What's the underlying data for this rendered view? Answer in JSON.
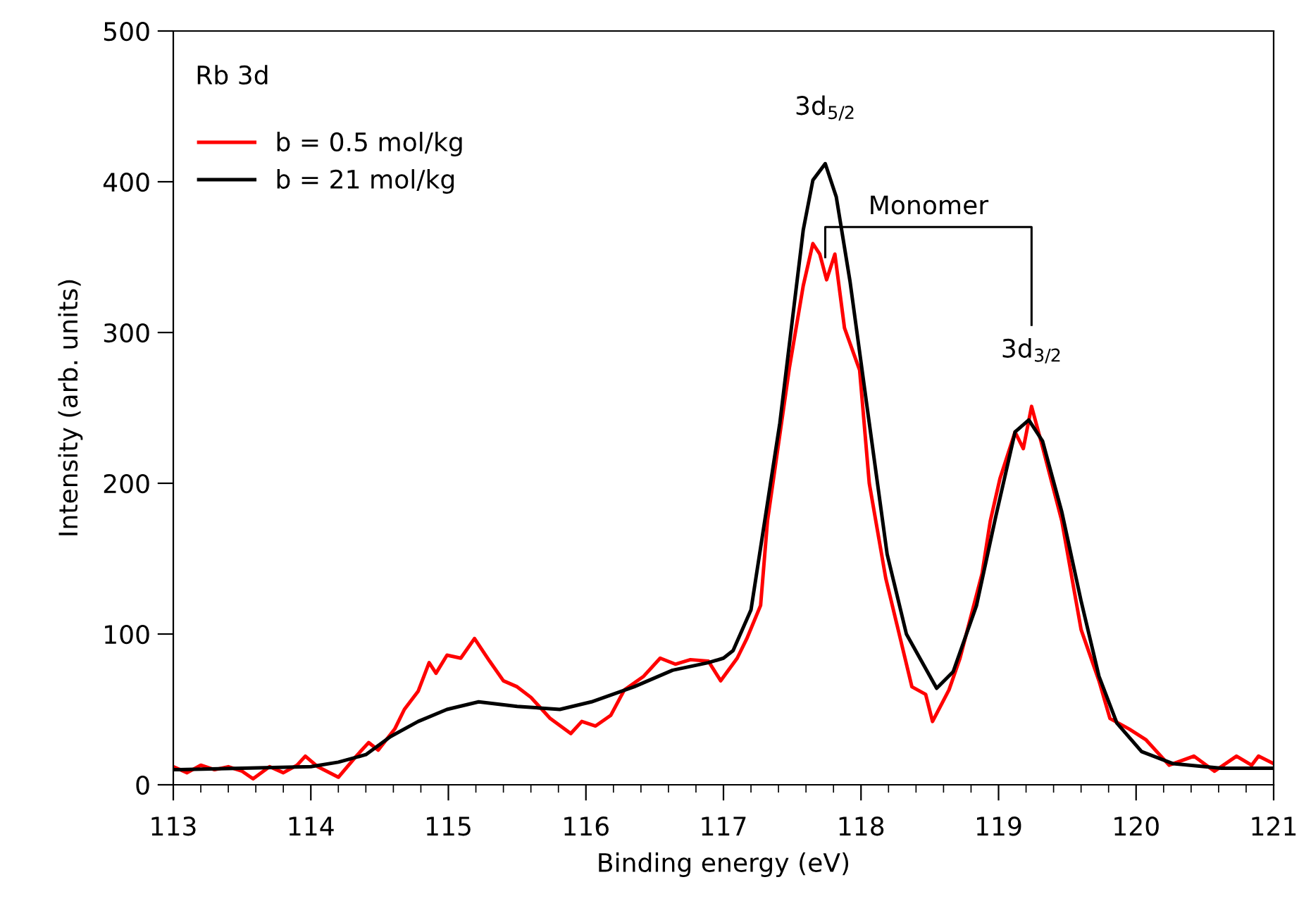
{
  "chart_data": {
    "type": "line",
    "xlabel": "Binding energy (eV)",
    "ylabel": "Intensity (arb. units)",
    "xlim": [
      113,
      121
    ],
    "xticks": [
      113,
      114,
      115,
      116,
      117,
      118,
      119,
      120,
      121
    ],
    "ylim": [
      0,
      500
    ],
    "yticks": [
      0,
      100,
      200,
      300,
      400,
      500
    ],
    "legend": "top left",
    "grid": false,
    "marker": "none",
    "line_style": "solid",
    "annotations": [
      "Rb 3d",
      {
        "text": "3d$_{5/2}$",
        "x": 117.74,
        "y": 412
      },
      "Monomer",
      {
        "text": "3d$_{3/2}$",
        "x": 119.24,
        "y": 251
      }
    ],
    "series": [
      {
        "name": "b = 0.5 mol/kg",
        "color": "#ff0000",
        "x": [
          113.0,
          113.1,
          113.2,
          113.3,
          113.4,
          113.5,
          113.58,
          113.7,
          113.8,
          113.9,
          113.96,
          114.05,
          114.2,
          114.33,
          114.42,
          114.49,
          114.61,
          114.68,
          114.78,
          114.86,
          114.91,
          114.99,
          115.09,
          115.19,
          115.3,
          115.4,
          115.5,
          115.6,
          115.74,
          115.89,
          115.97,
          116.07,
          116.18,
          116.28,
          116.42,
          116.54,
          116.65,
          116.76,
          116.89,
          116.98,
          117.1,
          117.17,
          117.27,
          117.32,
          117.48,
          117.58,
          117.65,
          117.7,
          117.75,
          117.81,
          117.88,
          117.99,
          118.06,
          118.18,
          118.37,
          118.47,
          118.52,
          118.64,
          118.72,
          118.88,
          118.94,
          119.01,
          119.12,
          119.18,
          119.24,
          119.32,
          119.46,
          119.6,
          119.73,
          119.81,
          119.95,
          120.07,
          120.24,
          120.42,
          120.57,
          120.73,
          120.84,
          120.89,
          121.0
        ],
        "values": [
          12,
          8,
          13,
          10,
          12,
          9,
          4,
          12,
          8,
          13,
          19,
          12,
          5,
          19,
          28,
          23,
          37,
          50,
          62,
          81,
          74,
          86,
          84,
          97,
          82,
          69,
          65,
          58,
          44,
          34,
          42,
          39,
          46,
          63,
          72,
          84,
          80,
          83,
          82,
          69,
          84,
          97,
          119,
          175,
          277,
          331,
          359,
          352,
          335,
          352,
          303,
          275,
          200,
          137,
          65,
          60,
          42,
          63,
          84,
          140,
          175,
          203,
          234,
          223,
          251,
          224,
          175,
          103,
          69,
          44,
          37,
          30,
          13,
          19,
          9,
          19,
          13,
          19,
          14
        ]
      },
      {
        "name": "b = 21 mol/kg",
        "color": "#000000",
        "x": [
          113.0,
          113.5,
          114.0,
          114.2,
          114.4,
          114.58,
          114.78,
          114.99,
          115.22,
          115.5,
          115.81,
          116.04,
          116.35,
          116.63,
          116.89,
          117.0,
          117.07,
          117.2,
          117.41,
          117.58,
          117.65,
          117.74,
          117.82,
          117.92,
          118.06,
          118.19,
          118.33,
          118.55,
          118.67,
          118.84,
          118.98,
          119.12,
          119.22,
          119.32,
          119.46,
          119.6,
          119.73,
          119.86,
          120.04,
          120.27,
          120.62,
          121.0
        ],
        "values": [
          10,
          11,
          12,
          15,
          20,
          32,
          42,
          50,
          55,
          52,
          50,
          55,
          65,
          76,
          81,
          84,
          89,
          116,
          240,
          368,
          401,
          412,
          390,
          334,
          240,
          153,
          100,
          64,
          75,
          119,
          178,
          234,
          242,
          228,
          181,
          122,
          72,
          41,
          22,
          14,
          11,
          11
        ]
      }
    ]
  }
}
